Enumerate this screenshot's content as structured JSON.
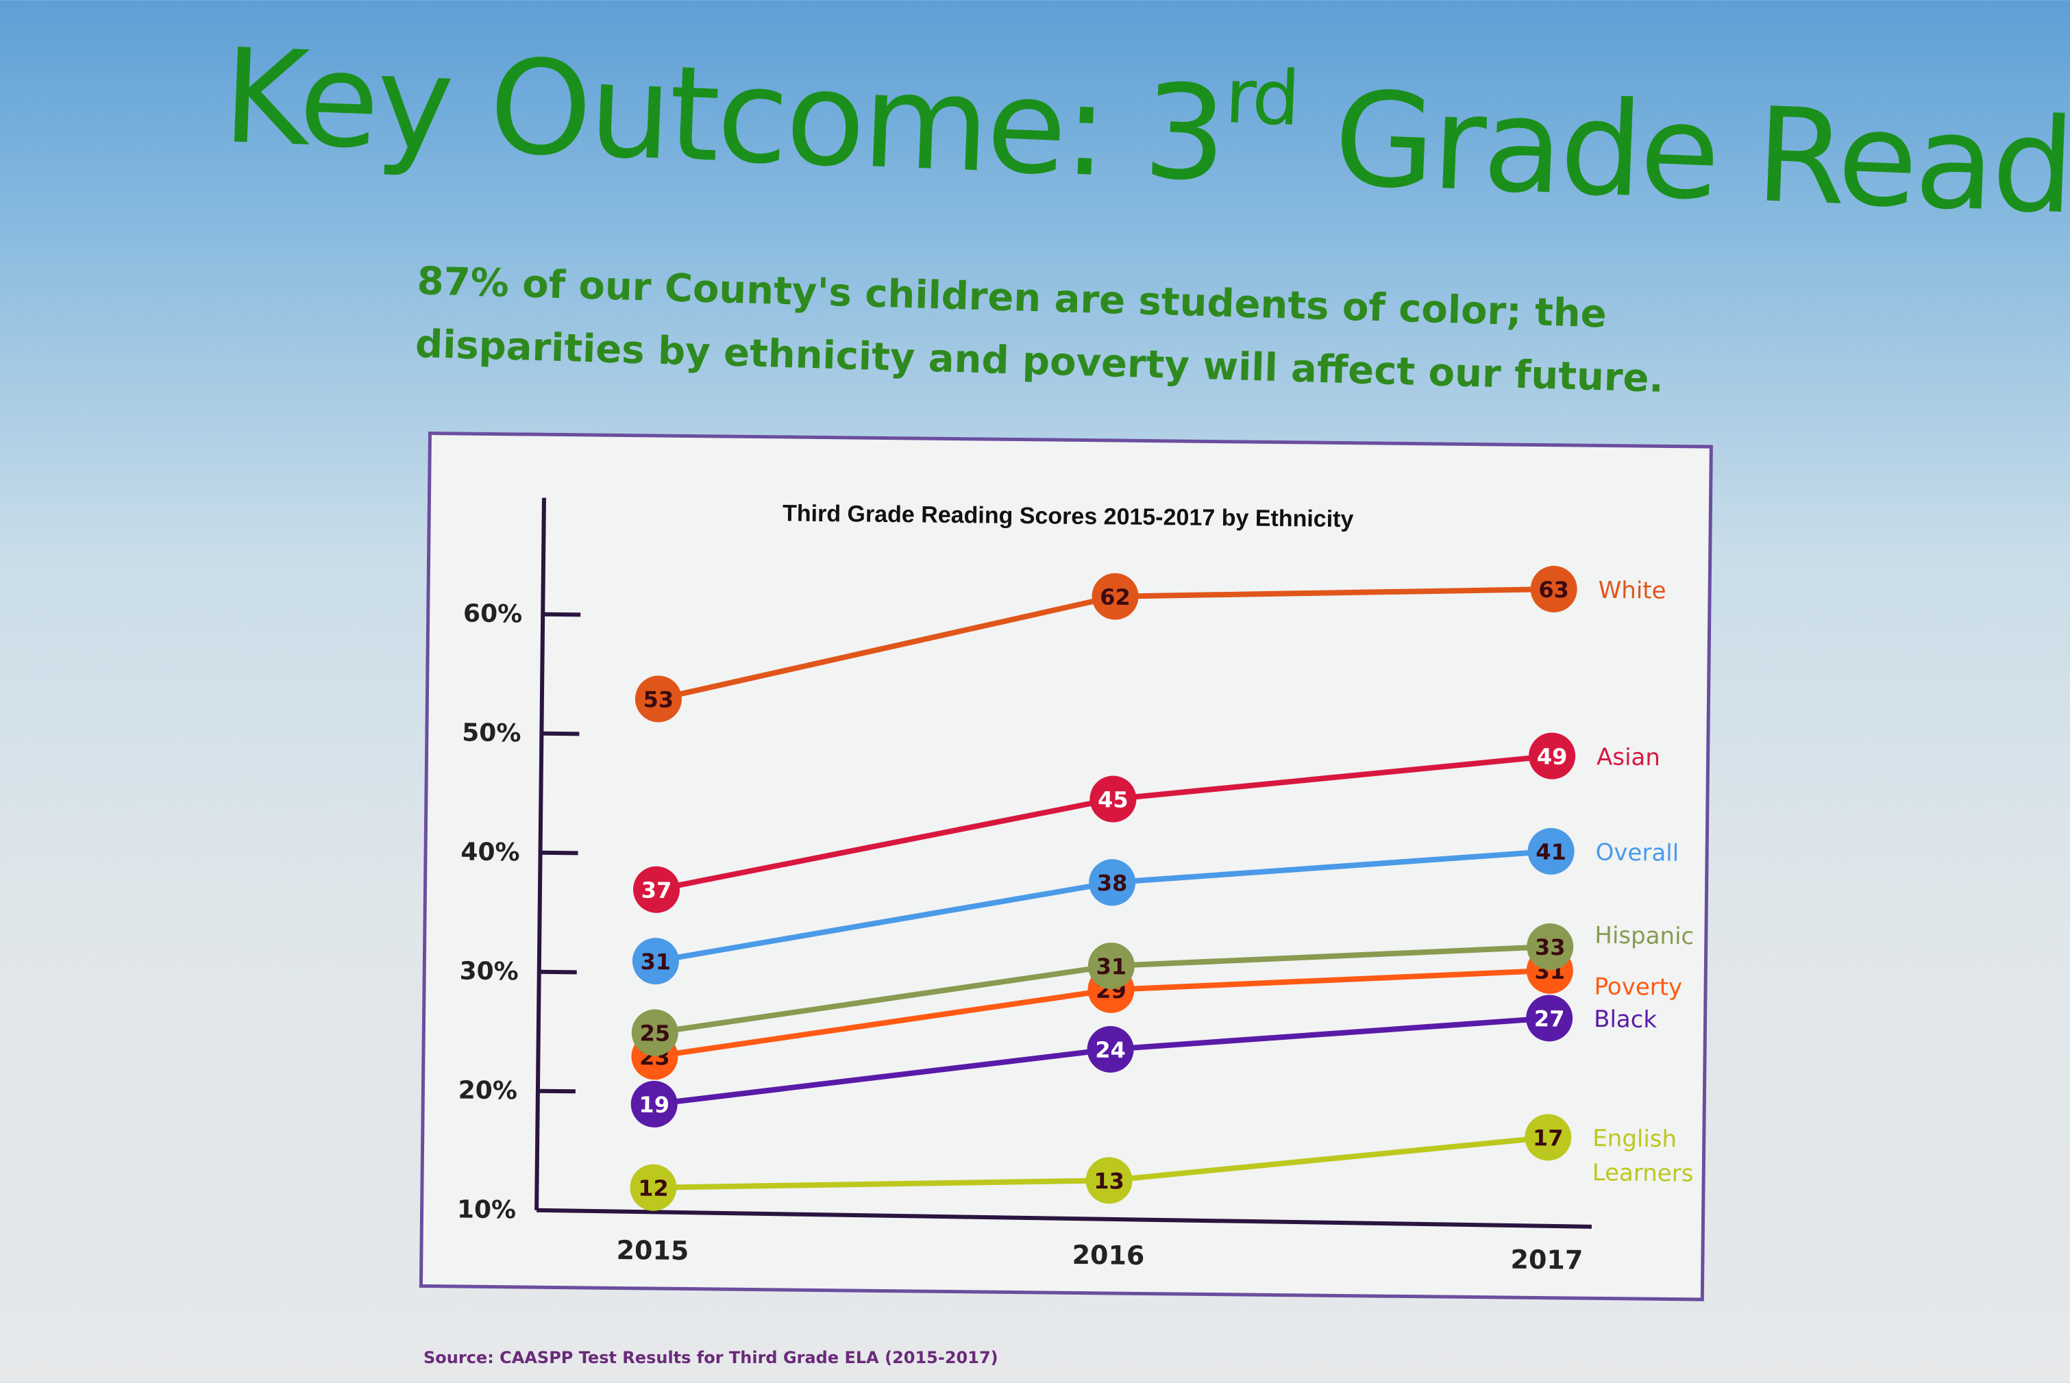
{
  "slide": {
    "title_main": "Key Outcome: 3",
    "title_sup": "rd",
    "title_tail": " Grade Reading",
    "subtitle": "87% of our County's children are students of color; the disparities by ethnicity and poverty will affect our future.",
    "source": "Source: CAASPP Test Results for Third Grade ELA (2015-2017)"
  },
  "chart_data": {
    "type": "line",
    "title": "Third Grade Reading Scores 2015-2017 by Ethnicity",
    "xlabel": "",
    "ylabel": "",
    "categories": [
      "2015",
      "2016",
      "2017"
    ],
    "yticks": [
      "10%",
      "20%",
      "30%",
      "40%",
      "50%",
      "60%"
    ],
    "ylim": [
      10,
      60
    ],
    "legend_placement": "right (end of lines)",
    "series": [
      {
        "name": "White",
        "values": [
          53,
          62,
          63
        ],
        "color": "#e0561a"
      },
      {
        "name": "Asian",
        "values": [
          37,
          45,
          49
        ],
        "color": "#d8173f"
      },
      {
        "name": "Overall",
        "values": [
          31,
          38,
          41
        ],
        "color": "#4a9ae8"
      },
      {
        "name": "Poverty",
        "values": [
          23,
          29,
          31
        ],
        "color": "#ff5a14"
      },
      {
        "name": "Hispanic",
        "values": [
          25,
          31,
          33
        ],
        "color": "#8a9a50"
      },
      {
        "name": "Black",
        "values": [
          19,
          24,
          27
        ],
        "color": "#5a1aa8"
      },
      {
        "name": "English Learners",
        "values": [
          12,
          13,
          17
        ],
        "color": "#bcc81e"
      }
    ]
  }
}
